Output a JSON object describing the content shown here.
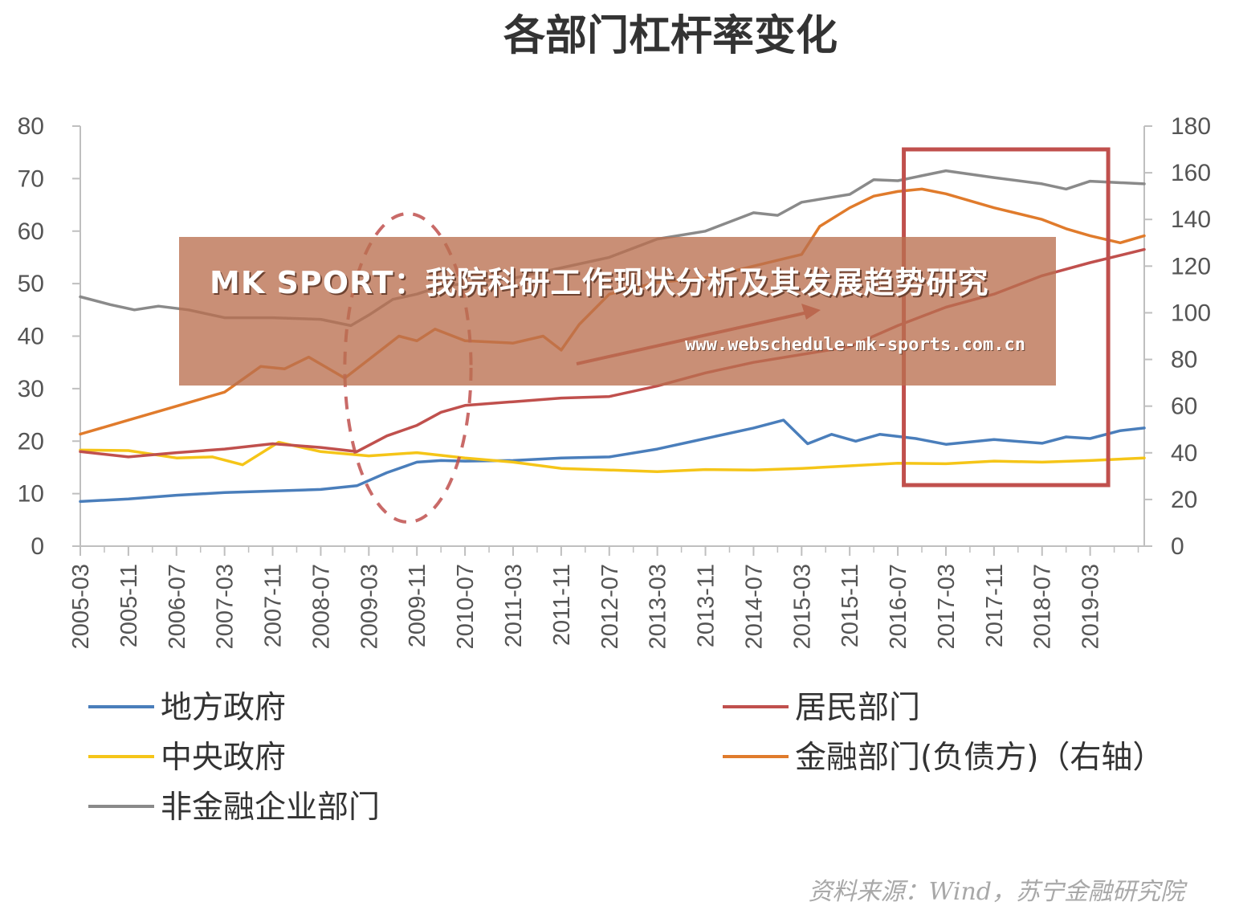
{
  "chart_data": {
    "type": "line",
    "title": "各部门杠杆率变化",
    "source": "资料来源：Wind，苏宁金融研究院",
    "x_ticks": [
      "2005-03",
      "2005-11",
      "2006-07",
      "2007-03",
      "2007-11",
      "2008-07",
      "2009-03",
      "2009-11",
      "2010-07",
      "2011-03",
      "2011-11",
      "2012-07",
      "2013-03",
      "2013-11",
      "2014-07",
      "2015-03",
      "2015-11",
      "2016-07",
      "2017-03",
      "2017-11",
      "2018-07",
      "2019-03"
    ],
    "x_range": [
      "2005-03",
      "2019-12"
    ],
    "y_left": {
      "ticks": [
        0,
        10,
        20,
        30,
        40,
        50,
        60,
        70,
        80
      ],
      "range": [
        0,
        80
      ]
    },
    "y_right": {
      "ticks": [
        0,
        20,
        40,
        60,
        80,
        100,
        120,
        140,
        160,
        180
      ],
      "range": [
        0,
        180
      ]
    },
    "grid": false,
    "legend_position": "bottom",
    "colors": {
      "local_gov": "#4a7ebb",
      "central_gov": "#f5c518",
      "nonfin_corp": "#8a8a8a",
      "household": "#c0504d",
      "financial": "#e07b2c",
      "annotation": "#c0504d"
    },
    "series": [
      {
        "key": "local_gov",
        "name": "地方政府",
        "axis": "left",
        "points": [
          [
            "2005-03",
            8.5
          ],
          [
            "2005-11",
            9
          ],
          [
            "2006-07",
            9.7
          ],
          [
            "2007-03",
            10.2
          ],
          [
            "2007-11",
            10.5
          ],
          [
            "2008-07",
            10.8
          ],
          [
            "2009-01",
            11.5
          ],
          [
            "2009-06",
            14
          ],
          [
            "2009-11",
            16
          ],
          [
            "2010-03",
            16.3
          ],
          [
            "2010-07",
            16.2
          ],
          [
            "2011-03",
            16.3
          ],
          [
            "2011-11",
            16.8
          ],
          [
            "2012-07",
            17
          ],
          [
            "2013-03",
            18.5
          ],
          [
            "2013-11",
            20.5
          ],
          [
            "2014-07",
            22.5
          ],
          [
            "2014-12",
            24
          ],
          [
            "2015-04",
            19.5
          ],
          [
            "2015-08",
            21.3
          ],
          [
            "2015-12",
            20
          ],
          [
            "2016-04",
            21.3
          ],
          [
            "2016-10",
            20.5
          ],
          [
            "2017-03",
            19.4
          ],
          [
            "2017-11",
            20.3
          ],
          [
            "2018-07",
            19.6
          ],
          [
            "2018-11",
            20.8
          ],
          [
            "2019-03",
            20.5
          ],
          [
            "2019-08",
            22
          ],
          [
            "2019-12",
            22.5
          ]
        ]
      },
      {
        "key": "central_gov",
        "name": "中央政府",
        "axis": "left",
        "points": [
          [
            "2005-03",
            18.3
          ],
          [
            "2005-11",
            18.2
          ],
          [
            "2006-07",
            16.8
          ],
          [
            "2007-01",
            17
          ],
          [
            "2007-06",
            15.5
          ],
          [
            "2007-12",
            19.8
          ],
          [
            "2008-07",
            18
          ],
          [
            "2009-03",
            17.2
          ],
          [
            "2009-11",
            17.8
          ],
          [
            "2010-07",
            16.8
          ],
          [
            "2011-03",
            16
          ],
          [
            "2011-11",
            14.8
          ],
          [
            "2012-07",
            14.5
          ],
          [
            "2013-03",
            14.2
          ],
          [
            "2013-11",
            14.6
          ],
          [
            "2014-07",
            14.5
          ],
          [
            "2015-03",
            14.8
          ],
          [
            "2015-11",
            15.3
          ],
          [
            "2016-07",
            15.8
          ],
          [
            "2017-03",
            15.7
          ],
          [
            "2017-11",
            16.2
          ],
          [
            "2018-07",
            16
          ],
          [
            "2019-03",
            16.3
          ],
          [
            "2019-12",
            16.8
          ]
        ]
      },
      {
        "key": "nonfin_corp",
        "name": "非金融企业部门",
        "axis": "left",
        "points": [
          [
            "2005-03",
            47.5
          ],
          [
            "2005-08",
            46
          ],
          [
            "2005-12",
            45
          ],
          [
            "2006-04",
            45.7
          ],
          [
            "2006-09",
            45
          ],
          [
            "2007-03",
            43.5
          ],
          [
            "2007-11",
            43.5
          ],
          [
            "2008-07",
            43.2
          ],
          [
            "2008-12",
            42
          ],
          [
            "2009-03",
            44
          ],
          [
            "2009-07",
            47
          ],
          [
            "2009-11",
            48
          ],
          [
            "2010-03",
            49.5
          ],
          [
            "2010-07",
            50
          ],
          [
            "2011-03",
            51
          ],
          [
            "2011-11",
            53
          ],
          [
            "2012-07",
            55
          ],
          [
            "2013-03",
            58.5
          ],
          [
            "2013-11",
            60
          ],
          [
            "2014-07",
            63.5
          ],
          [
            "2014-11",
            63
          ],
          [
            "2015-03",
            65.5
          ],
          [
            "2015-11",
            67
          ],
          [
            "2016-03",
            69.8
          ],
          [
            "2016-07",
            69.6
          ],
          [
            "2017-03",
            71.5
          ],
          [
            "2017-11",
            70.2
          ],
          [
            "2018-07",
            69
          ],
          [
            "2018-11",
            68
          ],
          [
            "2019-03",
            69.5
          ],
          [
            "2019-12",
            69
          ]
        ]
      },
      {
        "key": "household",
        "name": "居民部门",
        "axis": "left",
        "points": [
          [
            "2005-03",
            18
          ],
          [
            "2005-11",
            17
          ],
          [
            "2006-07",
            17.8
          ],
          [
            "2007-03",
            18.5
          ],
          [
            "2007-11",
            19.5
          ],
          [
            "2008-07",
            18.8
          ],
          [
            "2009-01",
            18
          ],
          [
            "2009-06",
            21
          ],
          [
            "2009-11",
            23
          ],
          [
            "2010-03",
            25.5
          ],
          [
            "2010-07",
            26.8
          ],
          [
            "2011-03",
            27.5
          ],
          [
            "2011-11",
            28.2
          ],
          [
            "2012-07",
            28.5
          ],
          [
            "2013-03",
            30.5
          ],
          [
            "2013-11",
            33
          ],
          [
            "2014-07",
            35
          ],
          [
            "2015-03",
            36.5
          ],
          [
            "2015-11",
            38
          ],
          [
            "2016-07",
            42
          ],
          [
            "2017-03",
            45.5
          ],
          [
            "2017-11",
            48
          ],
          [
            "2018-07",
            51.5
          ],
          [
            "2019-03",
            54
          ],
          [
            "2019-12",
            56.5
          ]
        ]
      },
      {
        "key": "financial",
        "name": "金融部门(负债方)（右轴）",
        "axis": "right",
        "points": [
          [
            "2005-03",
            48
          ],
          [
            "2005-11",
            54
          ],
          [
            "2006-07",
            60
          ],
          [
            "2007-03",
            66
          ],
          [
            "2007-09",
            77
          ],
          [
            "2008-01",
            76
          ],
          [
            "2008-05",
            81
          ],
          [
            "2008-11",
            72
          ],
          [
            "2009-03",
            80
          ],
          [
            "2009-08",
            90
          ],
          [
            "2009-11",
            88
          ],
          [
            "2010-02",
            93
          ],
          [
            "2010-07",
            88
          ],
          [
            "2011-03",
            87
          ],
          [
            "2011-08",
            90
          ],
          [
            "2011-11",
            84
          ],
          [
            "2012-02",
            95
          ],
          [
            "2012-07",
            108
          ],
          [
            "2013-03",
            113
          ],
          [
            "2013-11",
            115
          ],
          [
            "2014-07",
            120
          ],
          [
            "2015-03",
            125
          ],
          [
            "2015-06",
            137
          ],
          [
            "2015-11",
            145
          ],
          [
            "2016-03",
            150
          ],
          [
            "2016-07",
            152
          ],
          [
            "2016-11",
            153
          ],
          [
            "2017-03",
            151
          ],
          [
            "2017-11",
            145
          ],
          [
            "2018-07",
            140
          ],
          [
            "2018-11",
            136
          ],
          [
            "2019-03",
            133
          ],
          [
            "2019-08",
            130
          ],
          [
            "2019-12",
            133
          ]
        ]
      }
    ],
    "legend": [
      {
        "key": "local_gov",
        "name": "地方政府"
      },
      {
        "key": "household",
        "name": "居民部门"
      },
      {
        "key": "central_gov",
        "name": "中央政府"
      },
      {
        "key": "financial",
        "name": "金融部门(负债方)（右轴）"
      },
      {
        "key": "nonfin_corp",
        "name": "非金融企业部门"
      }
    ],
    "annotations": [
      {
        "type": "dashed-ellipse",
        "around": [
          "2008-11",
          "2010-08"
        ]
      },
      {
        "type": "rectangle",
        "around": [
          "2016-08",
          "2019-06"
        ]
      },
      {
        "type": "arrow",
        "direction": "up-right"
      }
    ]
  },
  "overlay": {
    "title": "MK SPORT：我院科研工作现状分析及其发展趋势研究",
    "url": "www.webschedule-mk-sports.com.cn"
  }
}
